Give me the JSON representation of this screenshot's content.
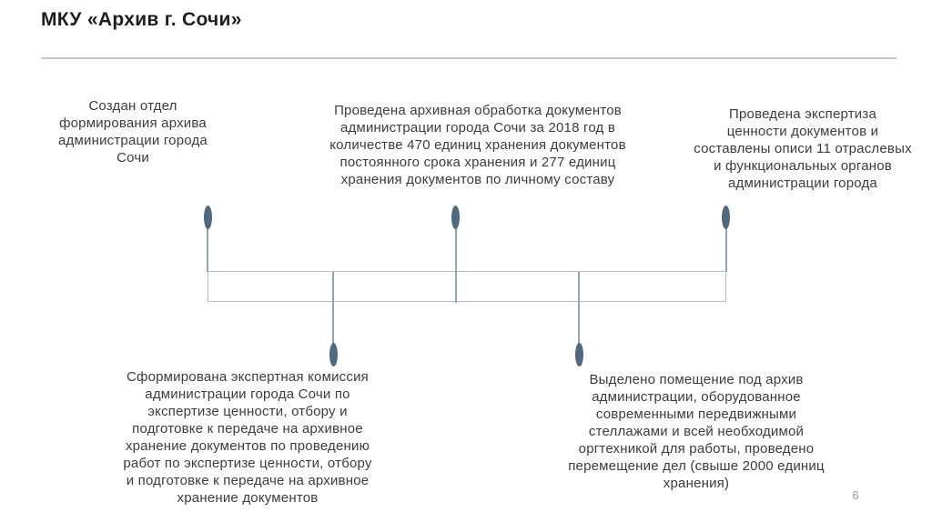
{
  "slide": {
    "title": "МКУ «Архив г. Сочи»",
    "page_number": "6",
    "colors": {
      "title_text": "#1e1e1e",
      "body_text": "#3c3c3c",
      "divider": "#c6c9ce",
      "timeline_marker": "#4f6a80",
      "timeline_connector": "#8fa6b6",
      "timeline_band_border": "#b2c1cb",
      "page_number": "#9b9b9b"
    }
  },
  "timeline": {
    "top_captions": [
      {
        "text": "Создан отдел\nформирования архива\nадминистрации города\nСочи"
      },
      {
        "text": "Проведена архивная обработка документов\nадминистрации города Сочи за 2018 год в\nколичестве 470 единиц хранения документов\nпостоянного срока хранения и 277 единиц\nхранения документов по личному составу"
      },
      {
        "text": "Проведена экспертиза\nценности документов и\nсоставлены описи 11 отраслевых\nи функциональных органов\nадминистрации города"
      }
    ],
    "bottom_captions": [
      {
        "text": "Сформирована экспертная комиссия\nадминистрации города Сочи по\nэкспертизе ценности, отбору и\nподготовке к передаче на архивное\nхранение документов по проведению\nработ по экспертизе ценности, отбору\nи подготовке к передаче на архивное\nхранение документов"
      },
      {
        "text": "Выделено помещение под архив\nадминистрации, оборудованное\nсовременными передвижными\nстеллажами и всей необходимой\nоргтехникой для работы, проведено\nперемещение дел (свыше 2000 единиц\nхранения)"
      }
    ]
  }
}
